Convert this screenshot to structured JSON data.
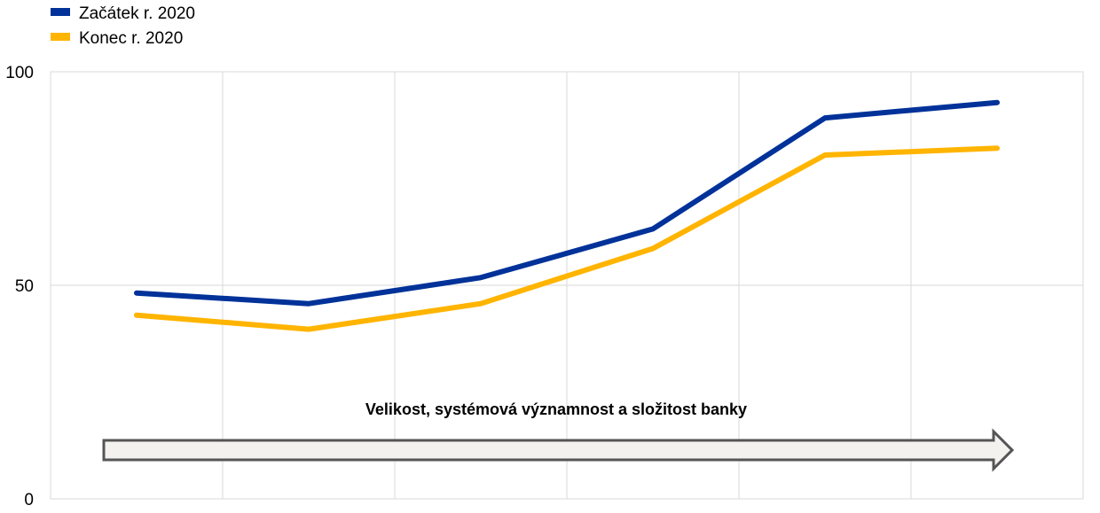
{
  "chart_data": {
    "type": "line",
    "title": "",
    "xlabel": "",
    "ylabel": "",
    "ylim": [
      0,
      100
    ],
    "yticks": [
      0,
      50,
      100
    ],
    "x": [
      1,
      2,
      3,
      4,
      5,
      6
    ],
    "grid": true,
    "legend_position": "top-left",
    "series": [
      {
        "name": "Začátek r. 2020",
        "color": "#003299",
        "values": [
          48.2,
          45.7,
          51.8,
          63.2,
          89.2,
          92.8
        ]
      },
      {
        "name": "Konec r. 2020",
        "color": "#FFB400",
        "values": [
          43.0,
          39.7,
          45.7,
          58.6,
          80.5,
          82.1
        ]
      }
    ],
    "annotation": {
      "text": "Velikost, systémová významnost a složitost banky",
      "arrow_direction": "right"
    }
  }
}
